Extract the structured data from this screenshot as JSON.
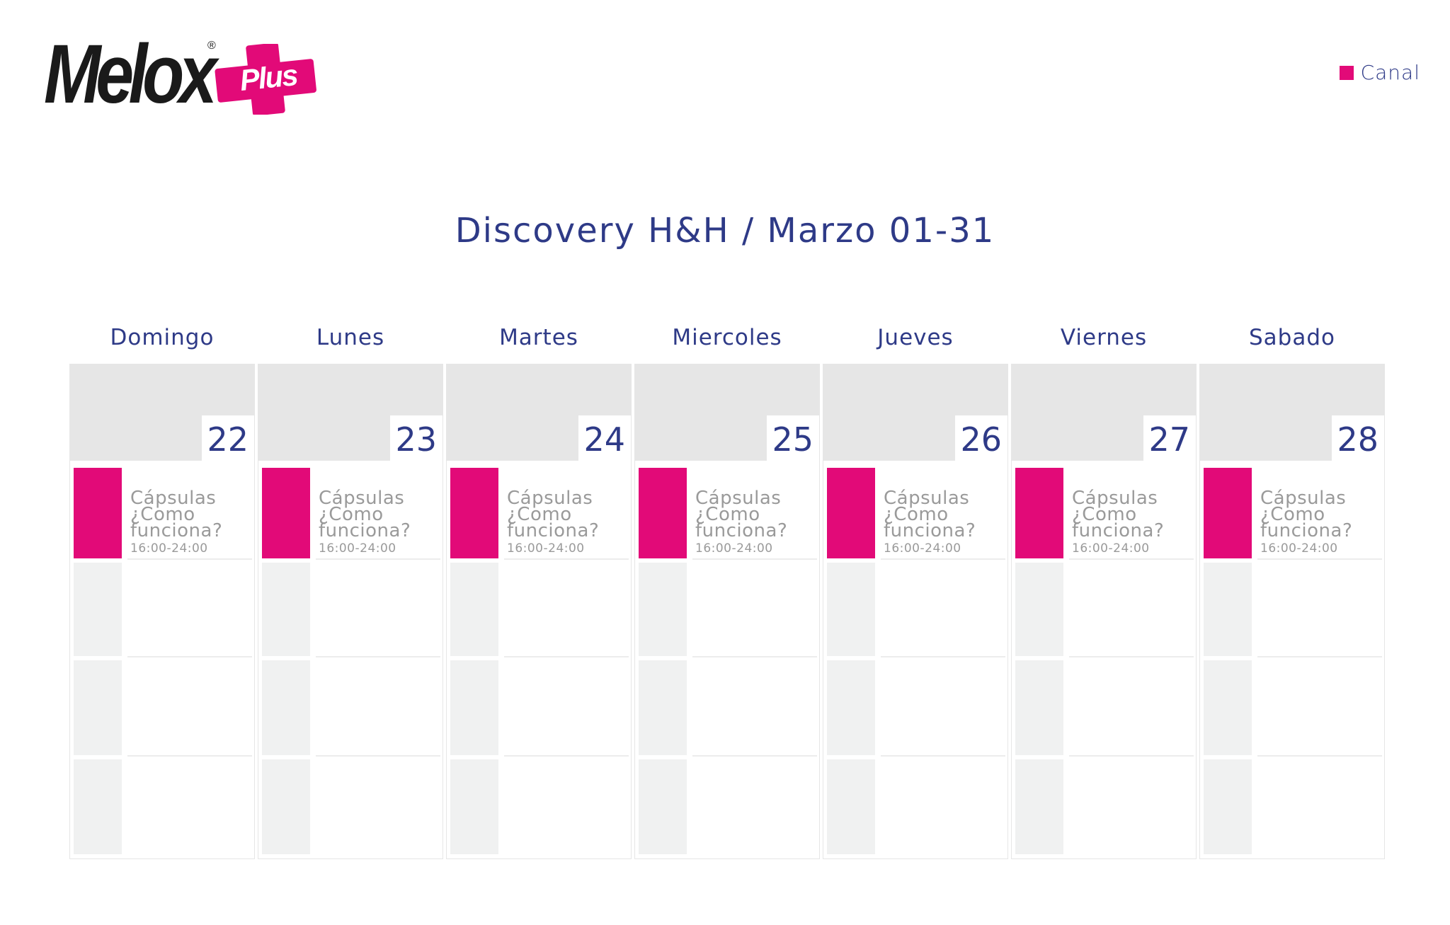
{
  "brand": {
    "name": "Melox",
    "registered": "®",
    "badge": "Plus",
    "accent_color": "#e20a78",
    "text_color": "#2e3a87"
  },
  "legend": {
    "label": "Canal",
    "color": "#e20a78"
  },
  "title": "Discovery H&H / Marzo 01-31",
  "days": [
    {
      "name": "Domingo",
      "number": "22",
      "event": {
        "line1": "Cápsulas",
        "line2": "¿Como",
        "line3": "funciona?",
        "time": "16:00-24:00"
      }
    },
    {
      "name": "Lunes",
      "number": "23",
      "event": {
        "line1": "Cápsulas",
        "line2": "¿Como",
        "line3": "funciona?",
        "time": "16:00-24:00"
      }
    },
    {
      "name": "Martes",
      "number": "24",
      "event": {
        "line1": "Cápsulas",
        "line2": "¿Como",
        "line3": "funciona?",
        "time": "16:00-24:00"
      }
    },
    {
      "name": "Miercoles",
      "number": "25",
      "event": {
        "line1": "Cápsulas",
        "line2": "¿Como",
        "line3": "funciona?",
        "time": "16:00-24:00"
      }
    },
    {
      "name": "Jueves",
      "number": "26",
      "event": {
        "line1": "Cápsulas",
        "line2": "¿Como",
        "line3": "funciona?",
        "time": "16:00-24:00"
      }
    },
    {
      "name": "Viernes",
      "number": "27",
      "event": {
        "line1": "Cápsulas",
        "line2": "¿Como",
        "line3": "funciona?",
        "time": "16:00-24:00"
      }
    },
    {
      "name": "Sabado",
      "number": "28",
      "event": {
        "line1": "Cápsulas",
        "line2": "¿Como",
        "line3": "funciona?",
        "time": "16:00-24:00"
      }
    }
  ]
}
